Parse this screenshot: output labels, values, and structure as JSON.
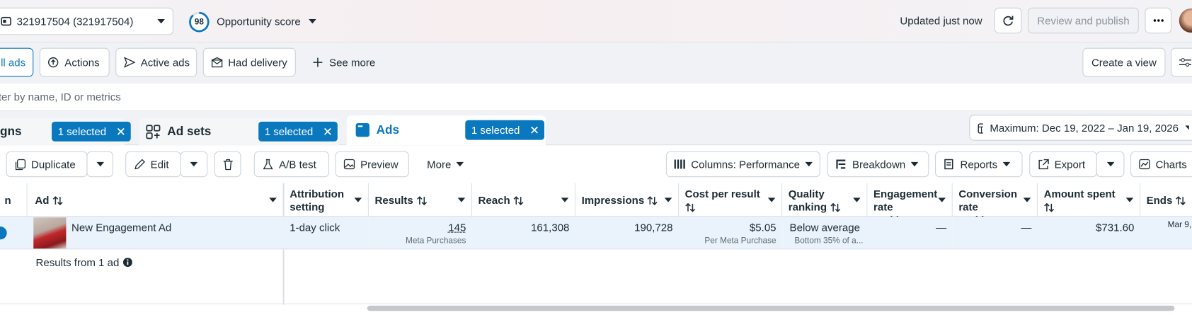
{
  "header": {
    "account": "321917504 (321917504)",
    "score": "98",
    "score_label": "Opportunity score",
    "status": "Updated just now",
    "publish": "Review and publish"
  },
  "filters": [
    "ll ads",
    "Actions",
    "Active ads",
    "Had delivery",
    "See more"
  ],
  "create_view": "Create a view",
  "search_placeholder": "ter by name, ID or metrics",
  "tabs": [
    {
      "label": "gns",
      "badge": "1 selected"
    },
    {
      "label": "Ad sets",
      "badge": "1 selected"
    },
    {
      "label": "Ads",
      "badge": "1 selected"
    }
  ],
  "date_range": "Maximum: Dec 19, 2022 – Jan 19, 2026",
  "toolbar": [
    "Duplicate",
    "Edit",
    "A/B test",
    "Preview",
    "More"
  ],
  "toolbar_right": [
    "Columns: Performance",
    "Breakdown",
    "Reports",
    "Export",
    "Charts"
  ],
  "table": {
    "first_column": "n",
    "columns": [
      {
        "label": "Ad",
        "sortable": true
      },
      {
        "label": "Attribution setting",
        "sortable": false
      },
      {
        "label": "Results",
        "sortable": true
      },
      {
        "label": "Reach",
        "sortable": true
      },
      {
        "label": "Impressions",
        "sortable": true
      },
      {
        "label": "Cost per result",
        "sortable": true
      },
      {
        "label": "Quality ranking",
        "sortable": true
      },
      {
        "label": "Engagement rate rankin…",
        "sortable": false
      },
      {
        "label": "Conversion rate rankin…",
        "sortable": false
      },
      {
        "label": "Amount spent",
        "sortable": true
      },
      {
        "label": "Ends",
        "sortable": true
      }
    ],
    "rows": [
      {
        "cells": [
          {
            "text": "New Engagement Ad"
          },
          {
            "text": "1-day click"
          },
          {
            "text": "145",
            "sub": "Meta Purchases"
          },
          {
            "text": "161,308"
          },
          {
            "text": "190,728"
          },
          {
            "text": "$5.05",
            "sub": "Per Meta Purchase"
          },
          {
            "text": "Below average",
            "sub": "Bottom 35% of a..."
          },
          {
            "text": "—"
          },
          {
            "text": "—"
          },
          {
            "text": "$731.60"
          },
          {
            "text": "Mar 9,"
          }
        ]
      }
    ],
    "footer": "Results from 1 ad"
  }
}
